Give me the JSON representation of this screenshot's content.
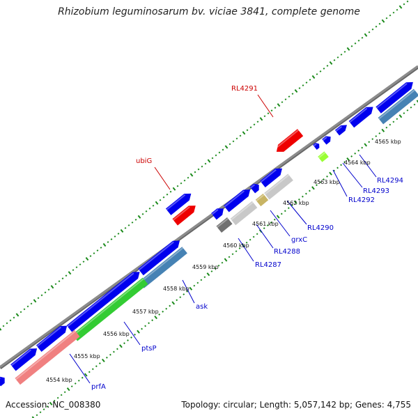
{
  "title": "Rhizobium leguminosarum bv. viciae 3841, complete genome",
  "footer": {
    "accession": "Accession: NC_008380",
    "topology": "Topology: circular; Length: 5,057,142 bp; Genes: 4,755"
  },
  "colors": {
    "backbone": "#8c8c8c",
    "tick_dots": "#1a8a1a",
    "forward_gene": "#0000ee",
    "reverse_gene": "#ee0000",
    "steelblue_gene": "#4682b4",
    "green_gene": "#33cc33",
    "pink_gene": "#f08080",
    "lightgray_gene": "#c8c8c8",
    "darkgray_gene": "#707070",
    "khaki_gene": "#c8b464",
    "yellowgreen_gene": "#99ff33",
    "blue_label": "#0000cc",
    "red_label": "#cc0000"
  },
  "kbp_labels": [
    "4554 kbp",
    "4555 kbp",
    "4556 kbp",
    "4557 kbp",
    "4558 kbp",
    "4559 kbp",
    "4560 kbp",
    "4561 kbp",
    "4562 kbp",
    "4563 kbp",
    "4564 kbp",
    "4565 kbp"
  ],
  "gene_labels": [
    {
      "text": "RL4291",
      "color": "red"
    },
    {
      "text": "ubiG",
      "color": "red"
    },
    {
      "text": "RL4294",
      "color": "blue"
    },
    {
      "text": "RL4293",
      "color": "blue"
    },
    {
      "text": "RL4292",
      "color": "blue"
    },
    {
      "text": "RL4290",
      "color": "blue"
    },
    {
      "text": "grxC",
      "color": "blue"
    },
    {
      "text": "RL4288",
      "color": "blue"
    },
    {
      "text": "RL4287",
      "color": "blue"
    },
    {
      "text": "ask",
      "color": "blue"
    },
    {
      "text": "ptsP",
      "color": "blue"
    },
    {
      "text": "prfA",
      "color": "blue"
    }
  ]
}
